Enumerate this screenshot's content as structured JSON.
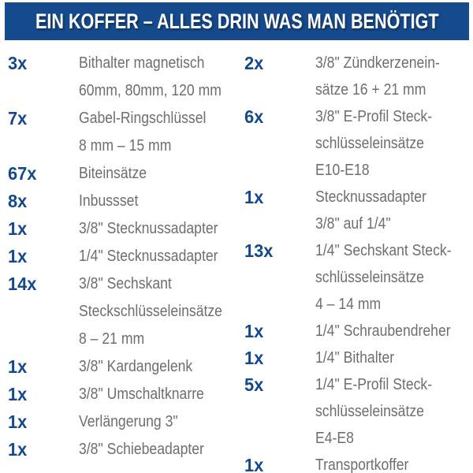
{
  "header": {
    "title": "EIN KOFFER – ALLES DRIN WAS MAN BENÖTIGT"
  },
  "colors": {
    "header_bg": "#154a8c",
    "header_text": "#ffffff",
    "qty_color": "#15498d",
    "desc_color": "#6e6e6e",
    "page_bg": "#ffffff"
  },
  "columns": {
    "left": {
      "items": [
        {
          "qty": "3x",
          "lines": [
            "Bithalter magnetisch",
            "60mm, 80mm, 120 mm"
          ]
        },
        {
          "qty": "7x",
          "lines": [
            "Gabel-Ringschlüssel",
            "8 mm – 15 mm"
          ]
        },
        {
          "qty": "67x",
          "lines": [
            "Biteinsätze"
          ]
        },
        {
          "qty": "8x",
          "lines": [
            "Inbussset"
          ]
        },
        {
          "qty": "1x",
          "lines": [
            "3/8\" Stecknussadapter"
          ]
        },
        {
          "qty": "1x",
          "lines": [
            "1/4\" Stecknussadapter"
          ]
        },
        {
          "qty": "14x",
          "lines": [
            "3/8\" Sechskant",
            "Steckschlüsseleinsätze",
            "8 – 21 mm"
          ]
        },
        {
          "qty": "1x",
          "lines": [
            "3/8\" Kardangelenk"
          ]
        },
        {
          "qty": "1x",
          "lines": [
            "3/8\" Umschaltknarre"
          ]
        },
        {
          "qty": "1x",
          "lines": [
            "Verlängerung 3\""
          ]
        },
        {
          "qty": "1x",
          "lines": [
            "3/8\" Schiebeadapter"
          ]
        }
      ]
    },
    "right": {
      "items": [
        {
          "qty": "2x",
          "lines": [
            "3/8\" Zündkerzenein-",
            "sätze 16 + 21 mm"
          ]
        },
        {
          "qty": "6x",
          "lines": [
            "3/8\" E-Profil Steck-",
            "schlüsseleinsätze",
            "E10-E18"
          ]
        },
        {
          "qty": "1x",
          "lines": [
            "Stecknussadapter",
            "3/8\" auf 1/4\""
          ]
        },
        {
          "qty": "13x",
          "lines": [
            "1/4\" Sechskant Steck-",
            "schlüsseleinsätze",
            "4 – 14 mm"
          ]
        },
        {
          "qty": "1x",
          "lines": [
            "1/4\" Schraubendreher"
          ]
        },
        {
          "qty": "1x",
          "lines": [
            "1/4\" Bithalter"
          ]
        },
        {
          "qty": "5x",
          "lines": [
            "1/4\" E-Profil Steck-",
            "schlüsseleinsätze",
            "E4-E8"
          ]
        },
        {
          "qty": "1x",
          "lines": [
            "Transportkoffer"
          ]
        }
      ]
    }
  }
}
